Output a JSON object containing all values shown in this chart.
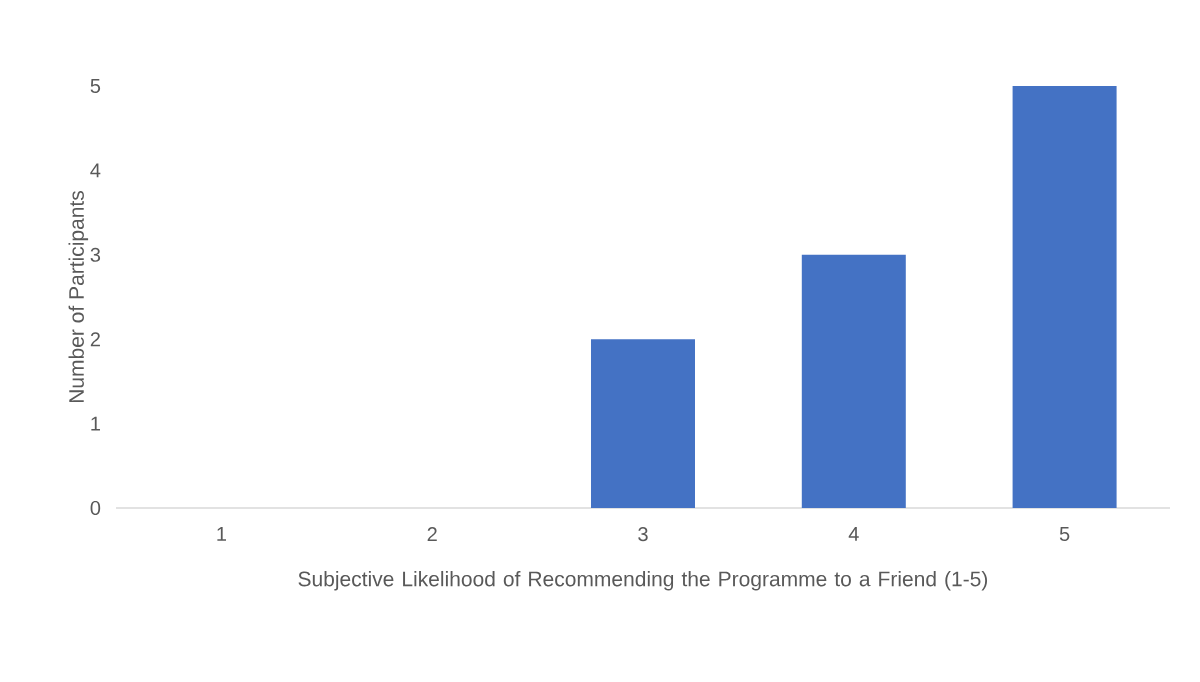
{
  "chart_data": {
    "type": "bar",
    "xlabel": "Subjective Likelihood of Recommending the Programme to a Friend (1-5)",
    "ylabel": "Number of Participants",
    "categories": [
      "1",
      "2",
      "3",
      "4",
      "5"
    ],
    "values": [
      0,
      0,
      2,
      3,
      5
    ],
    "color": "#4472c4",
    "ylim": [
      0,
      5
    ],
    "yticks": [
      0,
      1,
      2,
      3,
      4,
      5
    ]
  }
}
